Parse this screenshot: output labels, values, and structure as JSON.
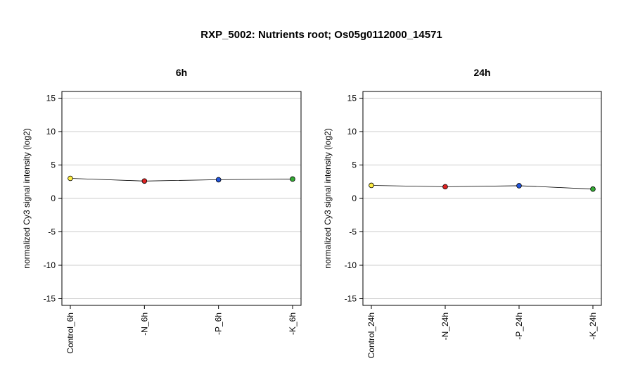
{
  "title": "RXP_5002: Nutrients root; Os05g0112000_14571",
  "chart_data": [
    {
      "type": "line",
      "title": "6h",
      "ylabel": "normalized Cy3 signal intensity (log2)",
      "ylim": [
        -16,
        16
      ],
      "yticks": [
        -15,
        -10,
        -5,
        0,
        5,
        10,
        15
      ],
      "grid": true,
      "categories": [
        "Control_6h",
        "-N_6h",
        "-P_6h",
        "-K_6h"
      ],
      "values": [
        3.0,
        2.6,
        2.8,
        2.9
      ],
      "point_colors": [
        "#ffee44",
        "#dd2222",
        "#2255dd",
        "#33aa33"
      ]
    },
    {
      "type": "line",
      "title": "24h",
      "ylabel": "normalized Cy3 signal intensity (log2)",
      "ylim": [
        -16,
        16
      ],
      "yticks": [
        -15,
        -10,
        -5,
        0,
        5,
        10,
        15
      ],
      "grid": true,
      "categories": [
        "Control_24h",
        "-N_24h",
        "-P_24h",
        "-K_24h"
      ],
      "values": [
        1.95,
        1.75,
        1.9,
        1.4
      ],
      "point_colors": [
        "#ffee44",
        "#dd2222",
        "#2255dd",
        "#33aa33"
      ]
    }
  ]
}
